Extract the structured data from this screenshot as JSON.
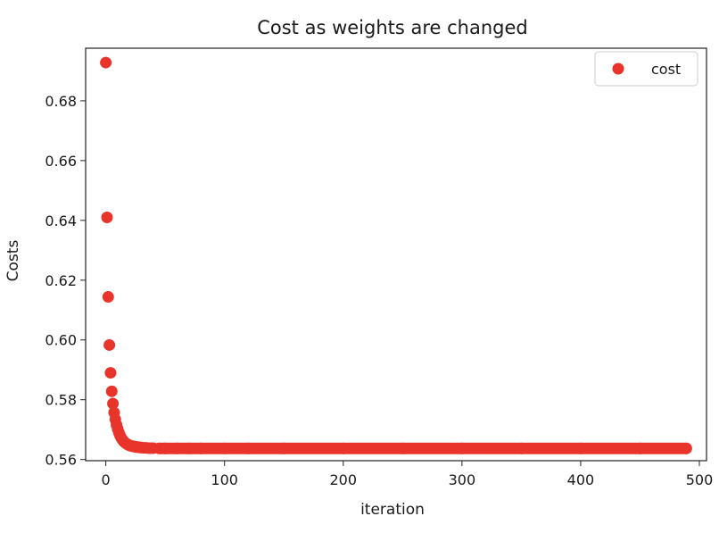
{
  "chart_data": {
    "type": "scatter",
    "title": "Cost as weights are changed",
    "xlabel": "iteration",
    "ylabel": "Costs",
    "xlim": [
      -17,
      506
    ],
    "ylim": [
      0.5596,
      0.6976
    ],
    "x_ticks": [
      0,
      100,
      200,
      300,
      400,
      500
    ],
    "y_ticks": [
      0.56,
      0.58,
      0.6,
      0.62,
      0.64,
      0.66,
      0.68
    ],
    "x_tick_labels": [
      "0",
      "100",
      "200",
      "300",
      "400",
      "500"
    ],
    "y_tick_labels": [
      "0.56",
      "0.58",
      "0.60",
      "0.62",
      "0.64",
      "0.66",
      "0.68"
    ],
    "grid": false,
    "legend": {
      "position": "top-right"
    },
    "series": [
      {
        "name": "cost",
        "color": "#e8342a",
        "marker": "circle",
        "x": [
          0,
          1,
          2,
          3,
          4,
          5,
          6,
          7,
          8,
          9,
          10,
          11,
          12,
          13,
          14,
          15,
          16,
          17,
          18,
          19,
          20,
          21,
          22,
          23,
          24,
          25,
          26,
          27,
          28,
          29,
          30,
          32,
          34,
          36,
          38,
          40,
          45,
          50,
          60,
          70,
          80,
          100,
          120,
          150,
          200,
          250,
          300,
          350,
          400,
          450,
          489
        ],
        "y": [
          0.6928,
          0.641,
          0.6144,
          0.5983,
          0.589,
          0.5828,
          0.5787,
          0.5757,
          0.5734,
          0.5716,
          0.5702,
          0.569,
          0.568,
          0.5672,
          0.5666,
          0.5661,
          0.5657,
          0.5654,
          0.5651,
          0.5649,
          0.5647,
          0.5646,
          0.5645,
          0.5644,
          0.5643,
          0.5642,
          0.5642,
          0.5641,
          0.5641,
          0.564,
          0.564,
          0.5639,
          0.5639,
          0.5638,
          0.5638,
          0.5638,
          0.5637,
          0.5637,
          0.5637,
          0.5637,
          0.5637,
          0.5637,
          0.5637,
          0.5637,
          0.5637,
          0.5637,
          0.5637,
          0.5637,
          0.5637,
          0.5637,
          0.5637
        ]
      }
    ]
  }
}
